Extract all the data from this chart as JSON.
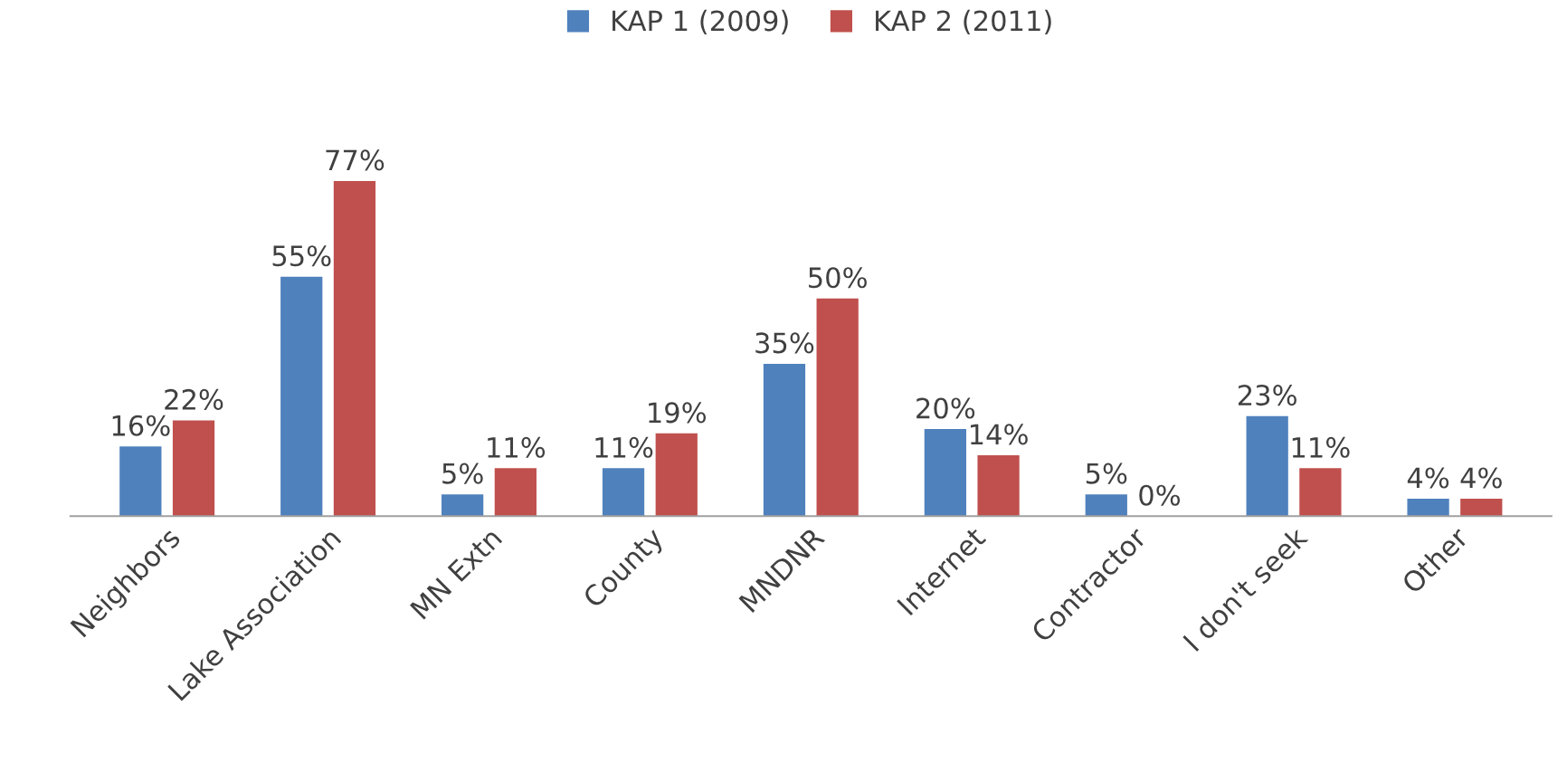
{
  "chart_data": {
    "type": "bar",
    "categories": [
      "Neighbors",
      "Lake Association",
      "MN Extn",
      "County",
      "MNDNR",
      "Internet",
      "Contractor",
      "I don't seek",
      "Other"
    ],
    "series": [
      {
        "name": "KAP 1 (2009)",
        "color": "#4f81bd",
        "values": [
          16,
          55,
          5,
          11,
          35,
          20,
          5,
          23,
          4
        ],
        "value_labels": [
          "16%",
          "55%",
          "5%",
          "11%",
          "35%",
          "20%",
          "5%",
          "23%",
          "4%"
        ]
      },
      {
        "name": "KAP 2 (2011)",
        "color": "#c0504d",
        "values": [
          22,
          77,
          11,
          19,
          50,
          14,
          0,
          11,
          4
        ],
        "value_labels": [
          "22%",
          "77%",
          "11%",
          "19%",
          "50%",
          "14%",
          "0%",
          "11%",
          "4%"
        ]
      }
    ],
    "legend": "top",
    "grid": false
  }
}
